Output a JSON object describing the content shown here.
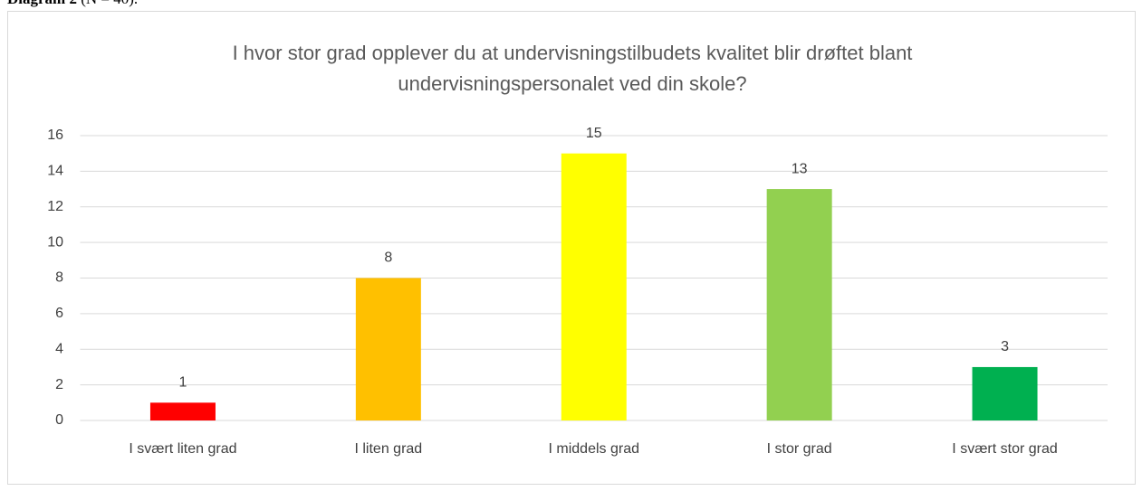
{
  "caption": {
    "label": "Diagram 2",
    "text": "(N = 40)."
  },
  "chart_data": {
    "type": "bar",
    "title": [
      "I hvor stor grad opplever du at undervisningstilbudets kvalitet blir drøftet blant",
      "undervisningspersonalet ved din skole?"
    ],
    "categories": [
      "I svært liten grad",
      "I liten grad",
      "I middels grad",
      "I stor grad",
      "I svært stor grad"
    ],
    "values": [
      1,
      8,
      15,
      13,
      3
    ],
    "colors": [
      "#ff0000",
      "#ffc000",
      "#ffff00",
      "#92d050",
      "#00b050"
    ],
    "ylim": [
      0,
      16
    ],
    "yticks": [
      0,
      2,
      4,
      6,
      8,
      10,
      12,
      14,
      16
    ],
    "grid": true
  }
}
